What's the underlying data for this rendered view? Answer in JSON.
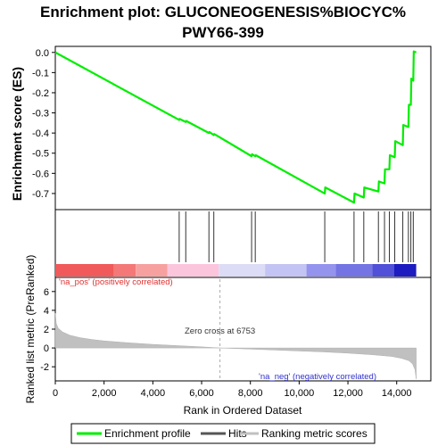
{
  "chart_data": {
    "type": "line",
    "title_lines": [
      "Enrichment plot: GLUCONEOGENESIS%BIOCYC%",
      "PWY66-399"
    ],
    "top_panel": {
      "ylabel": "Enrichment score (ES)",
      "ylim": [
        -0.78,
        0.03
      ],
      "yticks": [
        0.0,
        -0.1,
        -0.2,
        -0.3,
        -0.4,
        -0.5,
        -0.6,
        -0.7
      ],
      "ytick_labels": [
        "0.0",
        "-0.1",
        "-0.2",
        "-0.3",
        "-0.4",
        "-0.5",
        "-0.6",
        "-0.7"
      ],
      "series": [
        {
          "name": "Enrichment profile",
          "color": "#00ee00",
          "x": [
            0,
            5080,
            5100,
            5350,
            5370,
            6300,
            6320,
            6500,
            6520,
            8050,
            8070,
            8200,
            8220,
            11050,
            11070,
            12250,
            12270,
            12650,
            12670,
            13250,
            13270,
            13500,
            13520,
            13700,
            13720,
            13920,
            13940,
            14250,
            14270,
            14480,
            14500,
            14580,
            14600,
            14680,
            14700,
            14800
          ],
          "y": [
            0.0,
            -0.335,
            -0.33,
            -0.345,
            -0.34,
            -0.4,
            -0.395,
            -0.41,
            -0.405,
            -0.515,
            -0.505,
            -0.515,
            -0.51,
            -0.7,
            -0.67,
            -0.745,
            -0.7,
            -0.72,
            -0.67,
            -0.69,
            -0.64,
            -0.65,
            -0.58,
            -0.58,
            -0.51,
            -0.52,
            -0.44,
            -0.46,
            -0.36,
            -0.37,
            -0.26,
            -0.26,
            -0.13,
            -0.14,
            0.005,
            0.0
          ]
        }
      ]
    },
    "hits": {
      "label": "Hits",
      "x": [
        5080,
        5350,
        6300,
        6500,
        8050,
        8200,
        11050,
        12250,
        12650,
        13250,
        13500,
        13700,
        13920,
        14250,
        14480,
        14580,
        14680
      ]
    },
    "color_bar": {
      "segments": [
        {
          "from": 0,
          "to": 2400,
          "color": "#f05a5a"
        },
        {
          "from": 2400,
          "to": 3300,
          "color": "#f47878"
        },
        {
          "from": 3300,
          "to": 4600,
          "color": "#f7a0a0"
        },
        {
          "from": 4600,
          "to": 6700,
          "color": "#fbc6dc"
        },
        {
          "from": 6700,
          "to": 8600,
          "color": "#dcdcf6"
        },
        {
          "from": 8600,
          "to": 10300,
          "color": "#c4c4f4"
        },
        {
          "from": 10300,
          "to": 11500,
          "color": "#9494ee"
        },
        {
          "from": 11500,
          "to": 13000,
          "color": "#7474e4"
        },
        {
          "from": 13000,
          "to": 13900,
          "color": "#5050d8"
        },
        {
          "from": 13900,
          "to": 14800,
          "color": "#1c1cc0"
        }
      ]
    },
    "bottom_panel": {
      "ylabel": "Ranked list metric (PreRanked)",
      "xlabel": "Rank in Ordered Dataset",
      "ylim": [
        -3.5,
        7.5
      ],
      "yticks": [
        6,
        4,
        2,
        0,
        -2
      ],
      "ytick_labels": [
        "6",
        "4",
        "2",
        "0",
        "-2"
      ],
      "xlim": [
        0,
        15400
      ],
      "xticks": [
        0,
        2000,
        4000,
        6000,
        8000,
        10000,
        12000,
        14000
      ],
      "xtick_labels": [
        "0",
        "2,000",
        "4,000",
        "6,000",
        "8,000",
        "10,000",
        "12,000",
        "14,000"
      ],
      "metric_profile": {
        "x": [
          0,
          40,
          120,
          300,
          600,
          1000,
          1500,
          2000,
          3000,
          4000,
          5000,
          6000,
          6753,
          8000,
          9000,
          10000,
          11000,
          12000,
          13000,
          13800,
          14200,
          14500,
          14650,
          14750,
          14800
        ],
        "y": [
          3.7,
          2.6,
          2.1,
          1.7,
          1.35,
          1.1,
          0.9,
          0.75,
          0.55,
          0.38,
          0.25,
          0.12,
          0.0,
          -0.12,
          -0.22,
          -0.32,
          -0.42,
          -0.55,
          -0.72,
          -0.9,
          -1.1,
          -1.35,
          -1.7,
          -2.3,
          -3.3
        ]
      },
      "zero_cross_label": "Zero cross at 6753",
      "zero_cross_x": 6753,
      "pos_label": "'na_pos' (positively correlated)",
      "neg_label": "'na_neg' (negatively correlated)",
      "pos_color": "#e03030",
      "neg_color": "#3030d0"
    },
    "legend": {
      "items": [
        {
          "label": "Enrichment profile",
          "color": "#00ee00"
        },
        {
          "label": "Hits",
          "color": "#555555"
        },
        {
          "label": "Ranking metric scores",
          "color": "#c0c0c0"
        }
      ]
    }
  }
}
